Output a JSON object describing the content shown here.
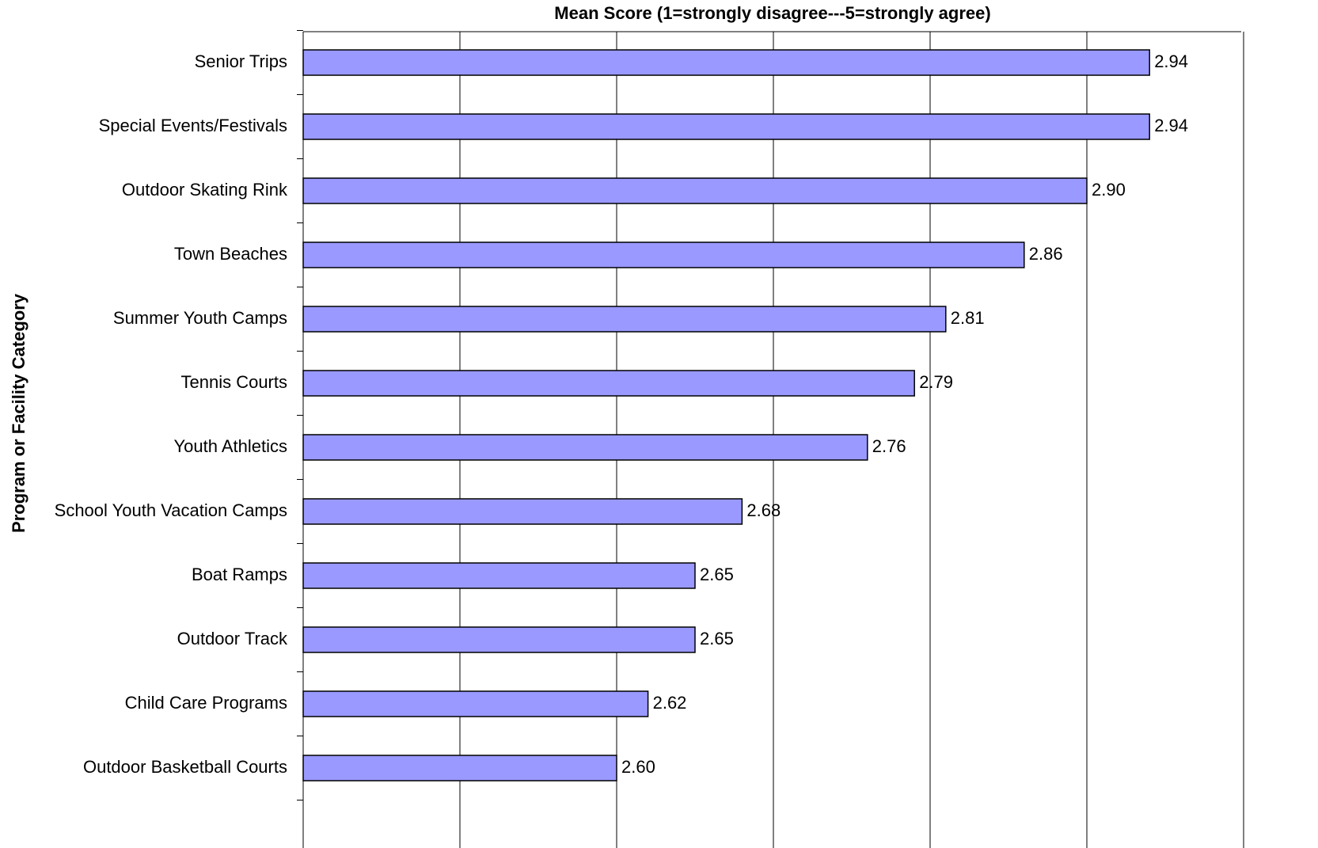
{
  "chart_data": {
    "type": "bar",
    "orientation": "horizontal",
    "title": "Mean Score (1=strongly disagree---5=strongly agree)",
    "y_label": "Program or Facility Category",
    "categories": [
      "Senior Trips",
      "Special Events/Festivals",
      "Outdoor Skating Rink",
      "Town Beaches",
      "Summer Youth Camps",
      "Tennis Courts",
      "Youth Athletics",
      "School Youth Vacation Camps",
      "Boat Ramps",
      "Outdoor Track",
      "Child Care Programs",
      "Outdoor Basketball Courts"
    ],
    "values": [
      2.94,
      2.94,
      2.9,
      2.86,
      2.81,
      2.79,
      2.76,
      2.68,
      2.65,
      2.65,
      2.62,
      2.6
    ],
    "value_labels": [
      "2.94",
      "2.94",
      "2.90",
      "2.86",
      "2.81",
      "2.79",
      "2.76",
      "2.68",
      "2.65",
      "2.65",
      "2.62",
      "2.60"
    ],
    "color": "#9999ff",
    "xlim": [
      2.4,
      3.0
    ],
    "xticks": [
      2.4,
      2.5,
      2.6,
      2.7,
      2.8,
      2.9,
      3.0
    ],
    "grid": true
  }
}
